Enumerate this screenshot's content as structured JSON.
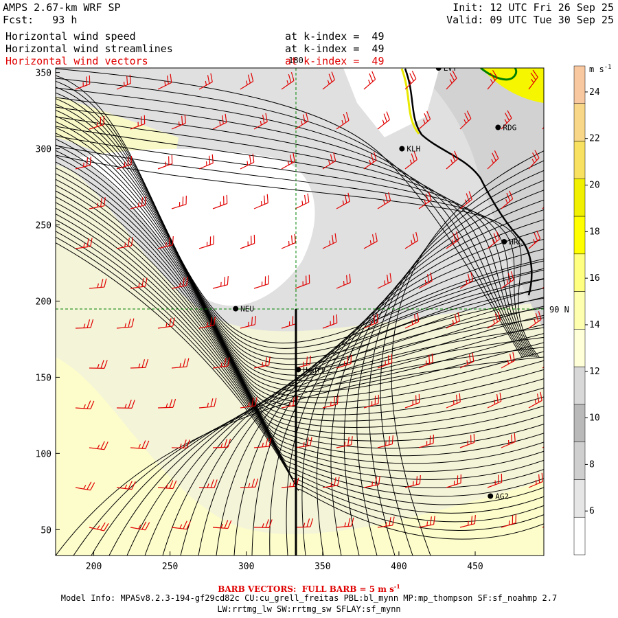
{
  "header": {
    "model": "AMPS 2.67-km WRF SP",
    "fcst_label": "Fcst:",
    "fcst_value": "93 h",
    "init": "Init: 12 UTC Fri 26 Sep 25",
    "valid": "Valid: 09 UTC Tue 30 Sep 25",
    "fields": [
      {
        "name": "Horizontal wind speed",
        "level": "at k-index =  49",
        "color": "#000000"
      },
      {
        "name": "Horizontal wind streamlines",
        "level": "at k-index =  49",
        "color": "#000000"
      },
      {
        "name": "Horizontal wind vectors",
        "level": "at k-index =  49",
        "color": "#e00000"
      }
    ]
  },
  "map": {
    "x_ticks": [
      "200",
      "250",
      "300",
      "350",
      "400",
      "450"
    ],
    "y_ticks": [
      "50",
      "100",
      "150",
      "200",
      "250",
      "300",
      "350"
    ],
    "meridian_label": "180",
    "parallel_label": "90 N",
    "stations": [
      {
        "id": "NEU",
        "x": 293,
        "y": 195
      },
      {
        "id": "Henry",
        "x": 334,
        "y": 155
      },
      {
        "id": "KLH",
        "x": 402,
        "y": 300
      },
      {
        "id": "RDG",
        "x": 465,
        "y": 314
      },
      {
        "id": "HRC",
        "x": 469,
        "y": 239
      },
      {
        "id": "AG2",
        "x": 460,
        "y": 72
      },
      {
        "id": "LVT",
        "x": 426,
        "y": 353
      }
    ]
  },
  "colorbar": {
    "unit": "m s",
    "unit_exp": "-1",
    "labels": [
      "6",
      "8",
      "10",
      "12",
      "14",
      "16",
      "18",
      "20",
      "22",
      "24"
    ],
    "colors": [
      "#ffffff",
      "#e6e6e6",
      "#cfcfcf",
      "#b9b9b9",
      "#d8d8d8",
      "#ffffd8",
      "#ffffb0",
      "#ffff80",
      "#ffff00",
      "#f0f000",
      "#f8e060",
      "#f8d888",
      "#f8c8a0"
    ]
  },
  "footer": {
    "barb_note": "BARB VECTORS:  FULL BARB = 5 m s",
    "barb_exp": "-1",
    "model_info_1": "Model Info: MPASv8.2.3-194-gf29cd82c CU:cu_grell_freitas PBL:bl_mynn MP:mp_thompson SF:sf_noahmp 2.7",
    "model_info_2": "LW:rrtmg_lw SW:rrtmg_sw SFLAY:sf_mynn"
  },
  "colors": {
    "barb": "#e00000",
    "streamline": "#000000",
    "grid": "#008000",
    "coast_yellow": "#e8e800",
    "ice_green": "#008000"
  }
}
